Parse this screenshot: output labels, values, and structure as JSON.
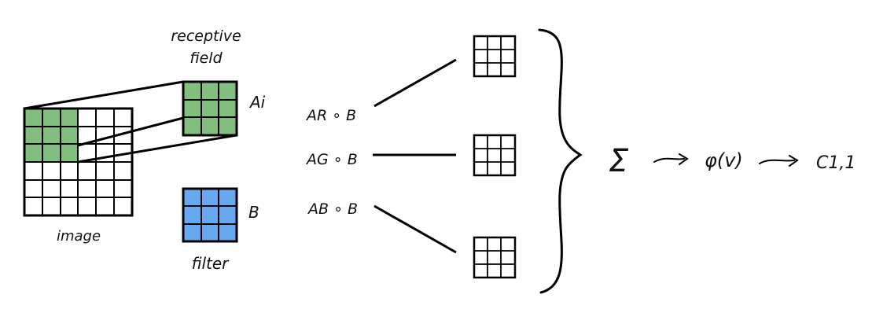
{
  "labels": {
    "receptive_field_line1": "receptive",
    "receptive_field_line2": "field",
    "image": "image",
    "filter": "filter",
    "a_i": "Ai",
    "b": "B",
    "a_r_b": "AR ∘ B",
    "a_g_b": "AG ∘ B",
    "a_b_b": "AB ∘ B",
    "sum": "Σ",
    "phi": "φ(v)",
    "output": "C1,1"
  },
  "colors": {
    "receptive_green": "#82bf7e",
    "filter_blue": "#68a8f0",
    "stroke": "#000000"
  },
  "icons": {
    "arrow": "hand-drawn-arrow-icon",
    "brace": "curly-brace-icon"
  }
}
